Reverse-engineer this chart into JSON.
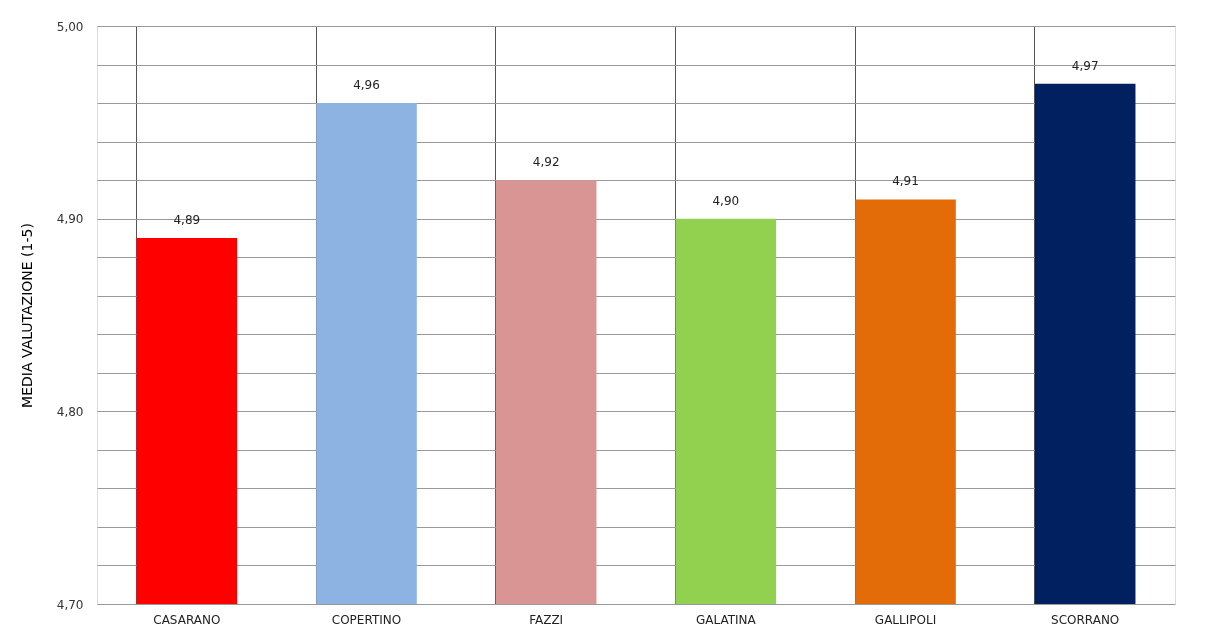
{
  "chart_data": {
    "type": "bar",
    "ylabel": "MEDIA VALUTAZIONE (1-5)",
    "categories": [
      "CASARANO",
      "COPERTINO",
      "FAZZI",
      "GALATINA",
      "GALLIPOLI",
      "SCORRANO"
    ],
    "values": [
      4.89,
      4.96,
      4.92,
      4.9,
      4.91,
      4.97
    ],
    "colors": [
      "#ff0000",
      "#8db3e2",
      "#d99594",
      "#92d050",
      "#e36c09",
      "#002060"
    ],
    "value_labels": [
      "4,89",
      "4,96",
      "4,92",
      "4,90",
      "4,91",
      "4,97"
    ],
    "ylim": [
      4.7,
      5.0
    ],
    "yticks": [
      {
        "value": 4.7,
        "label": "4,70"
      },
      {
        "value": 4.72,
        "label": null
      },
      {
        "value": 4.74,
        "label": null
      },
      {
        "value": 4.76,
        "label": null
      },
      {
        "value": 4.78,
        "label": null
      },
      {
        "value": 4.8,
        "label": "4,80"
      },
      {
        "value": 4.82,
        "label": null
      },
      {
        "value": 4.84,
        "label": null
      },
      {
        "value": 4.86,
        "label": null
      },
      {
        "value": 4.88,
        "label": null
      },
      {
        "value": 4.9,
        "label": "4,90"
      },
      {
        "value": 4.92,
        "label": null
      },
      {
        "value": 4.94,
        "label": null
      },
      {
        "value": 4.96,
        "label": null
      },
      {
        "value": 4.98,
        "label": null
      },
      {
        "value": 5.0,
        "label": "5,00"
      }
    ],
    "grid": true
  }
}
